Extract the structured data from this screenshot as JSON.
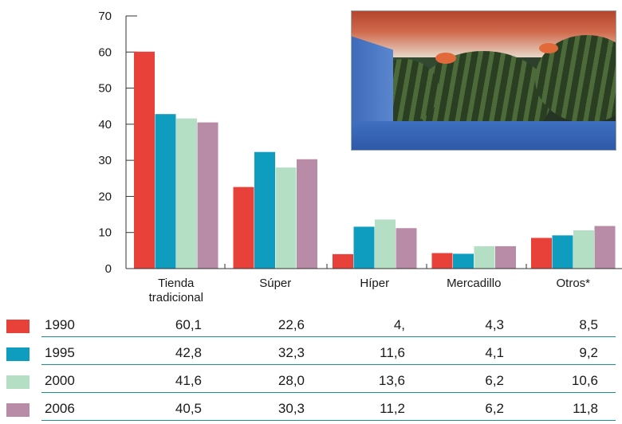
{
  "chart_data": {
    "type": "bar",
    "categories": [
      "Tienda tradicional",
      "Súper",
      "Híper",
      "Mercadillo",
      "Otros*"
    ],
    "category_lines": [
      [
        "Tienda",
        "tradicional"
      ],
      [
        "Súper"
      ],
      [
        "Híper"
      ],
      [
        "Mercadillo"
      ],
      [
        "Otros*"
      ]
    ],
    "series": [
      {
        "name": "1990",
        "color": "#e8413a",
        "values": [
          60.1,
          22.6,
          4.0,
          4.3,
          8.5
        ],
        "labels": [
          "60,1",
          "22,6",
          "4,",
          "4,3",
          "8,5"
        ]
      },
      {
        "name": "1995",
        "color": "#0e9cbf",
        "values": [
          42.8,
          32.3,
          11.6,
          4.1,
          9.2
        ],
        "labels": [
          "42,8",
          "32,3",
          "11,6",
          "4,1",
          "9,2"
        ]
      },
      {
        "name": "2000",
        "color": "#b5dfc5",
        "values": [
          41.6,
          28.0,
          13.6,
          6.2,
          10.6
        ],
        "labels": [
          "41,6",
          "28,0",
          "13,6",
          "6,2",
          "10,6"
        ]
      },
      {
        "name": "2006",
        "color": "#b88ba6",
        "values": [
          40.5,
          30.3,
          11.2,
          6.2,
          11.8
        ],
        "labels": [
          "40,5",
          "30,3",
          "11,2",
          "6,2",
          "11,8"
        ]
      }
    ],
    "yticks": [
      "0",
      "10",
      "20",
      "30",
      "40",
      "50",
      "60",
      "70"
    ],
    "ylim": [
      0,
      70
    ],
    "title": "",
    "xlabel": "",
    "ylabel": "",
    "grid": false,
    "legend_placement": "table-bottom"
  },
  "photo": {
    "icon": "watermelon-photo"
  }
}
